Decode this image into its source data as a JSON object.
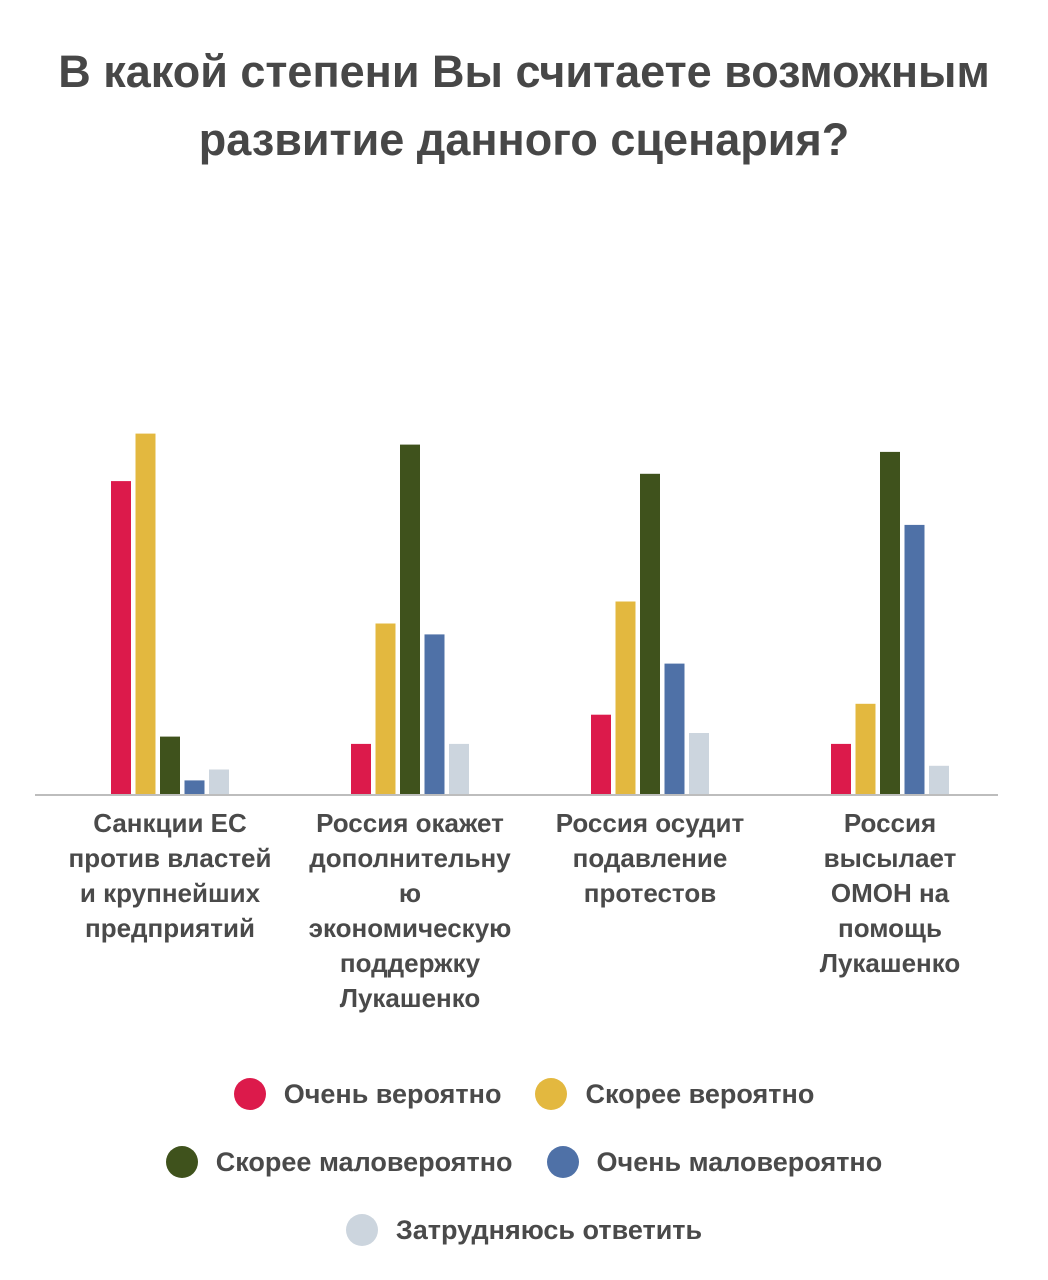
{
  "title": "В какой степени Вы считаете возможным развитие данного сценария?",
  "chart_data": {
    "type": "bar",
    "title": "В какой степени Вы считаете возможным развитие данного сценария?",
    "xlabel": "",
    "ylabel": "",
    "ylim": [
      0,
      100
    ],
    "grid": false,
    "legend_position": "bottom",
    "categories": [
      "Санкции ЕС против властей и крупнейших предприятий",
      "Россия окажет дополнительну ю экономическую поддержку Лукашенко",
      "Россия осудит подавление протестов",
      "Россия высылает ОМОН на помощь Лукашенко"
    ],
    "category_lines": [
      [
        "Санкции ЕС",
        "против властей",
        "и крупнейших",
        "предприятий"
      ],
      [
        "Россия окажет",
        "дополнительну",
        "ю",
        "экономическую",
        "поддержку",
        "Лукашенко"
      ],
      [
        "Россия осудит",
        "подавление",
        "протестов"
      ],
      [
        "Россия",
        "высылает",
        "ОМОН на",
        "помощь",
        "Лукашенко"
      ]
    ],
    "series": [
      {
        "name": "Очень вероятно",
        "color": "#dc1a4b",
        "values": [
          43,
          7,
          11,
          7
        ]
      },
      {
        "name": "Скорее вероятно",
        "color": "#e3b83f",
        "values": [
          49.5,
          23.5,
          26.5,
          12.5
        ]
      },
      {
        "name": "Скорее маловероятно",
        "color": "#3f521c",
        "values": [
          8,
          48,
          44,
          47
        ]
      },
      {
        "name": "Очень маловероятно",
        "color": "#4f71a7",
        "values": [
          2,
          22,
          18,
          37
        ]
      },
      {
        "name": "Затрудняюсь ответить",
        "color": "#ccd5de",
        "values": [
          3.5,
          7,
          8.5,
          4
        ]
      }
    ]
  },
  "legend": {
    "rows": [
      [
        {
          "label": "Очень вероятно",
          "color": "#dc1a4b"
        },
        {
          "label": "Скорее вероятно",
          "color": "#e3b83f"
        }
      ],
      [
        {
          "label": "Скорее маловероятно",
          "color": "#3f521c"
        },
        {
          "label": "Очень маловероятно",
          "color": "#4f71a7"
        }
      ],
      [
        {
          "label": "Затрудняюсь ответить",
          "color": "#ccd5de"
        }
      ]
    ]
  }
}
